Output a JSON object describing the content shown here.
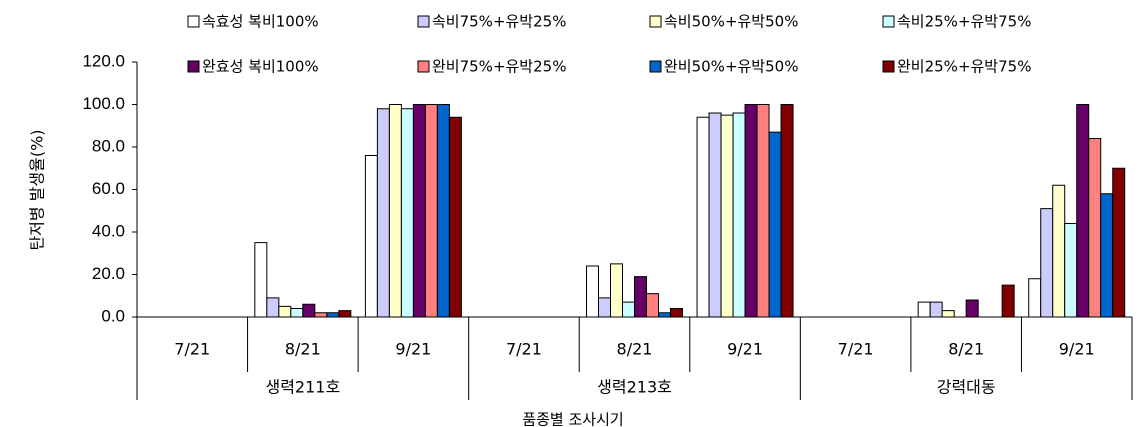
{
  "chart_data": {
    "type": "bar",
    "y_label": "탄저병 발생율(%)",
    "x_label": "품종별 조사시기",
    "categories": [
      "7/21",
      "8/21",
      "9/21",
      "7/21",
      "8/21",
      "9/21",
      "7/21",
      "8/21",
      "9/21"
    ],
    "groups": [
      "생력211호",
      "생력213호",
      "강력대동"
    ],
    "ylim": [
      0,
      120
    ],
    "yticks": [
      {
        "value": 0,
        "label": "0.0"
      },
      {
        "value": 20,
        "label": "20.0"
      },
      {
        "value": 40,
        "label": "40.0"
      },
      {
        "value": 60,
        "label": "60.0"
      },
      {
        "value": 80,
        "label": "80.0"
      },
      {
        "value": 100,
        "label": "100.0"
      },
      {
        "value": 120,
        "label": "120.0"
      }
    ],
    "series": [
      {
        "name": "속효성 복비100%",
        "color": "#ffffff",
        "values": [
          0,
          35,
          76,
          0,
          24,
          94,
          0,
          7,
          18
        ]
      },
      {
        "name": "속비75%+유박25%",
        "color": "#ccccff",
        "values": [
          0,
          9,
          98,
          0,
          9,
          96,
          0,
          7,
          51
        ]
      },
      {
        "name": "속비50%+유박50%",
        "color": "#ffffcc",
        "values": [
          0,
          5,
          100,
          0,
          25,
          95,
          0,
          3,
          62
        ]
      },
      {
        "name": "속비25%+유박75%",
        "color": "#ccffff",
        "values": [
          0,
          4,
          98,
          0,
          7,
          96,
          0,
          0,
          44
        ]
      },
      {
        "name": "완효성 복비100%",
        "color": "#660066",
        "values": [
          0,
          6,
          100,
          0,
          19,
          100,
          0,
          8,
          100
        ]
      },
      {
        "name": "완비75%+유박25%",
        "color": "#ff8080",
        "values": [
          0,
          2,
          100,
          0,
          11,
          100,
          0,
          0,
          84
        ]
      },
      {
        "name": "완비50%+유박50%",
        "color": "#0066cc",
        "values": [
          0,
          2,
          100,
          0,
          2,
          87,
          0,
          0,
          58
        ]
      },
      {
        "name": "완비25%+유박75%",
        "color": "#800000",
        "values": [
          0,
          3,
          94,
          0,
          4,
          100,
          0,
          15,
          70
        ]
      }
    ]
  }
}
